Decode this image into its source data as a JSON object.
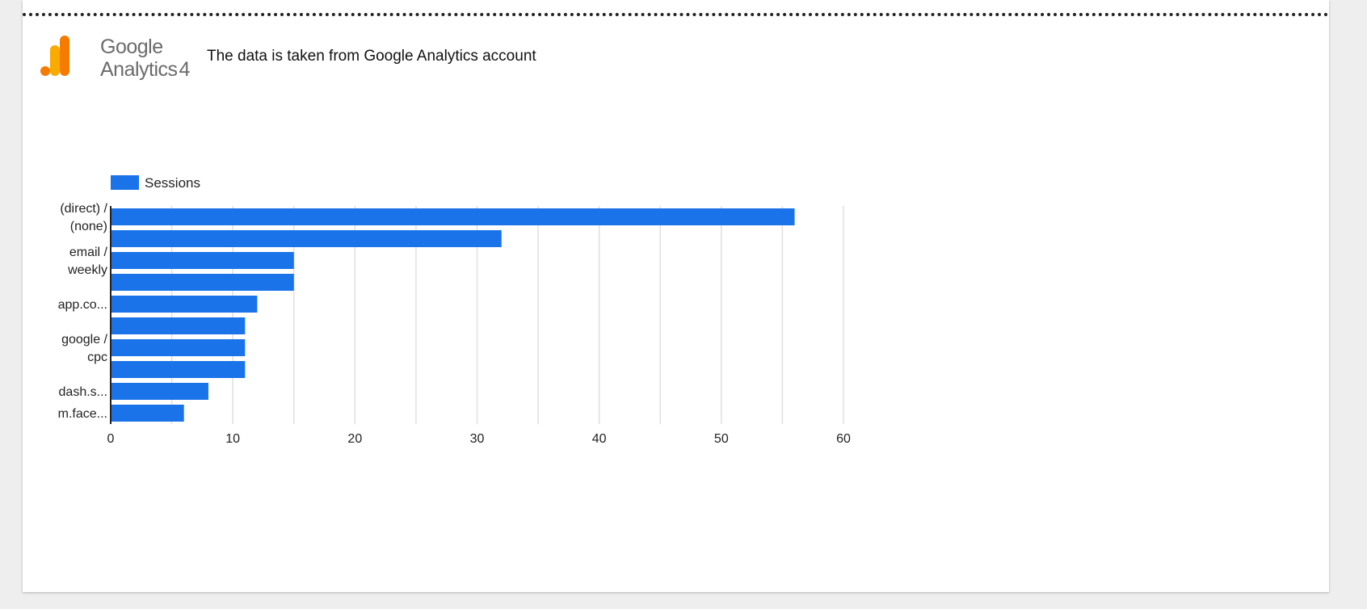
{
  "header": {
    "logo_line1": "Google",
    "logo_line2": "Analytics",
    "logo_version": "4",
    "note": "The data is taken from Google Analytics account"
  },
  "colors": {
    "bar": "#1a73e8",
    "logo_orange": "#f57c00",
    "logo_amber": "#f9ab00",
    "gridline": "#e0e0e0"
  },
  "chart_data": {
    "type": "bar",
    "orientation": "horizontal",
    "legend_position": "top-left",
    "grid": true,
    "series": [
      {
        "name": "Sessions",
        "values": [
          56,
          32,
          15,
          15,
          12,
          11,
          11,
          11,
          8,
          6
        ]
      }
    ],
    "category_labels": [
      {
        "text": [
          "(direct) /",
          "(none)"
        ],
        "bars": [
          0
        ]
      },
      {
        "text": [
          "email /",
          "weekly"
        ],
        "bars": [
          2
        ]
      },
      {
        "text": [
          "app.co..."
        ],
        "bars": [
          4
        ]
      },
      {
        "text": [
          "google /",
          "cpc"
        ],
        "bars": [
          6
        ]
      },
      {
        "text": [
          "dash.s..."
        ],
        "bars": [
          8
        ]
      },
      {
        "text": [
          "m.face..."
        ],
        "bars": [
          9
        ]
      }
    ],
    "x_ticks": [
      0,
      10,
      20,
      30,
      40,
      50,
      60
    ],
    "xlim": [
      0,
      60
    ]
  }
}
